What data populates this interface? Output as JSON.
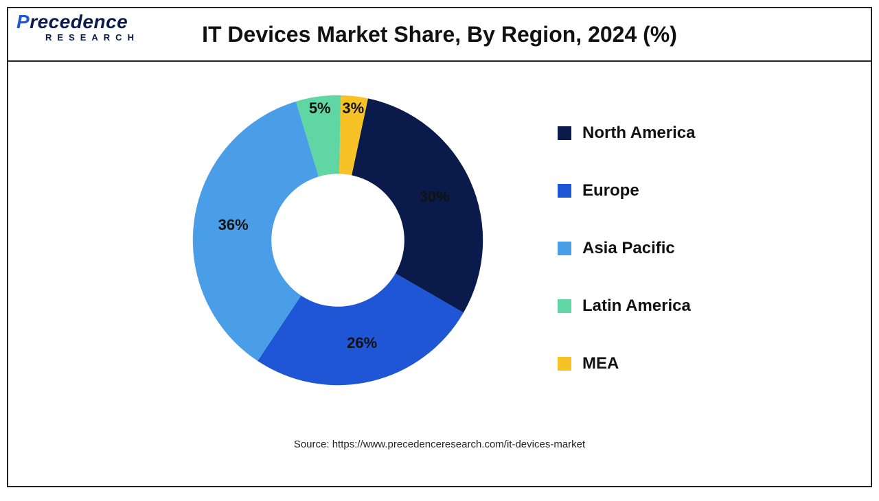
{
  "logo": {
    "top_accent": "P",
    "top_rest": "recedence",
    "bottom": "RESEARCH",
    "color_main": "#0a1a4a",
    "color_accent": "#1e56d6"
  },
  "chart": {
    "type": "donut",
    "title": "IT Devices Market Share, By Region, 2024 (%)",
    "title_fontsize": 32,
    "title_fontweight": 700,
    "background_color": "#ffffff",
    "border_color": "#222222",
    "outer_radius_pct": 48,
    "inner_radius_pct": 22,
    "start_angle_deg": 12,
    "slice_label_fontsize": 22,
    "slice_label_fontweight": 700,
    "slice_label_color": "#111111",
    "legend": {
      "position": "right",
      "fontsize": 24,
      "fontweight": 700,
      "swatch_size": 20,
      "gap": 56
    },
    "slices": [
      {
        "label": "North America",
        "value": 30,
        "color": "#0a1a4a",
        "text_label": "30%"
      },
      {
        "label": "Europe",
        "value": 26,
        "color": "#1e56d6",
        "text_label": "26%"
      },
      {
        "label": "Asia Pacific",
        "value": 36,
        "color": "#4a9ee8",
        "text_label": "36%"
      },
      {
        "label": "Latin America",
        "value": 5,
        "color": "#5fd6a4",
        "text_label": "5%"
      },
      {
        "label": "MEA",
        "value": 3,
        "color": "#f7c225",
        "text_label": "3%"
      }
    ]
  },
  "source": "Source: https://www.precedenceresearch.com/it-devices-market"
}
